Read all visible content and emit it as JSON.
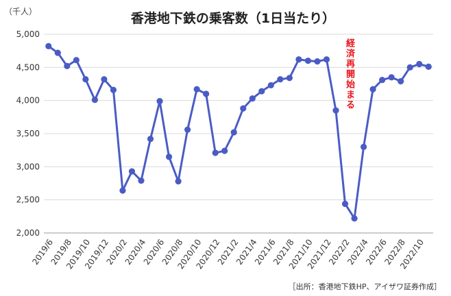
{
  "chart_data": {
    "type": "line",
    "title": "香港地下鉄の乗客数（1日当たり）",
    "unit_label": "（千人）",
    "source": "［出所：香港地下鉄HP、アイザワ証券作成］",
    "annotation": "経済再開始まる",
    "x": [
      "2019/6",
      "2019/7",
      "2019/8",
      "2019/9",
      "2019/10",
      "2019/11",
      "2019/12",
      "2020/1",
      "2020/2",
      "2020/3",
      "2020/4",
      "2020/5",
      "2020/6",
      "2020/7",
      "2020/8",
      "2020/9",
      "2020/10",
      "2020/11",
      "2020/12",
      "2021/1",
      "2021/2",
      "2021/3",
      "2021/4",
      "2021/5",
      "2021/6",
      "2021/7",
      "2021/8",
      "2021/9",
      "2021/10",
      "2021/11",
      "2021/12",
      "2022/1",
      "2022/2",
      "2022/3",
      "2022/4",
      "2022/5",
      "2022/6",
      "2022/7",
      "2022/8",
      "2022/9",
      "2022/10",
      "2022/11"
    ],
    "x_tick_labels": [
      "2019/6",
      "2019/8",
      "2019/10",
      "2019/12",
      "2020/2",
      "2020/4",
      "2020/6",
      "2020/8",
      "2020/10",
      "2020/12",
      "2021/2",
      "2021/4",
      "2021/6",
      "2021/8",
      "2021/10",
      "2021/12",
      "2022/2",
      "2022/4",
      "2022/6",
      "2022/8",
      "2022/10"
    ],
    "series": [
      {
        "values": [
          4820,
          4720,
          4520,
          4610,
          4320,
          4010,
          4320,
          4160,
          2640,
          2930,
          2790,
          3420,
          3990,
          3150,
          2780,
          3560,
          4170,
          4100,
          3210,
          3240,
          3520,
          3880,
          4030,
          4140,
          4230,
          4320,
          4340,
          4620,
          4600,
          4590,
          4620,
          3850,
          2440,
          2220,
          3300,
          4170,
          4310,
          4350,
          4290,
          4500,
          4550,
          4510
        ]
      }
    ],
    "ylim": [
      2000,
      5000
    ],
    "y_ticks": [
      "2,000",
      "2,500",
      "3,000",
      "3,500",
      "4,000",
      "4,500",
      "5,000"
    ],
    "grid": true,
    "line_color": "#4a5cc4",
    "annotation_color": "#e8141b"
  }
}
